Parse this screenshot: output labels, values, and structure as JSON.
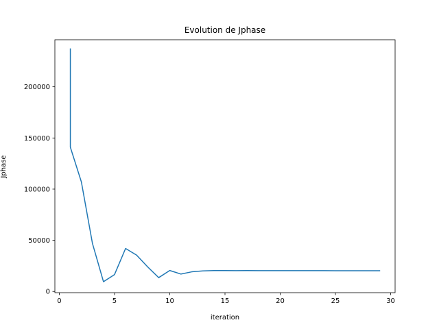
{
  "chart_data": {
    "type": "line",
    "title": "Evolution de Jphase",
    "xlabel": "iteration",
    "ylabel": "Jphase",
    "xlim": [
      -0.4,
      30.4
    ],
    "ylim": [
      -1200,
      246000
    ],
    "xticks": [
      0,
      5,
      10,
      15,
      20,
      25,
      30
    ],
    "xtick_labels": [
      "0",
      "5",
      "10",
      "15",
      "20",
      "25",
      "30"
    ],
    "yticks": [
      0,
      50000,
      100000,
      150000,
      200000
    ],
    "ytick_labels": [
      "0",
      "50000",
      "100000",
      "150000",
      "200000"
    ],
    "grid": false,
    "legend": "none",
    "series": [
      {
        "color": "#1f77b4",
        "x": [
          1,
          1,
          2,
          3,
          4,
          5,
          6,
          7,
          8,
          9,
          10,
          11,
          12,
          13,
          14,
          15,
          16,
          17,
          18,
          19,
          20,
          21,
          22,
          23,
          24,
          25,
          26,
          27,
          28,
          29
        ],
        "y": [
          237000,
          141000,
          107000,
          47000,
          9500,
          16500,
          42000,
          35500,
          24000,
          13500,
          20500,
          17000,
          19200,
          20100,
          20400,
          20400,
          20300,
          20400,
          20300,
          20300,
          20300,
          20300,
          20300,
          20300,
          20300,
          20200,
          20200,
          20200,
          20200,
          20200
        ]
      }
    ]
  }
}
